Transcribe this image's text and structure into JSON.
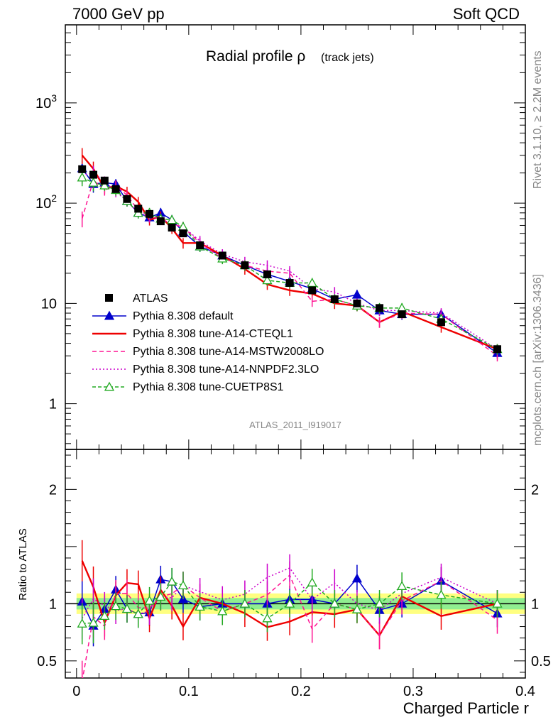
{
  "header": {
    "energy_label": "7000 GeV pp",
    "category_label": "Soft QCD"
  },
  "side": {
    "rivet_label": "Rivet 3.1.10, ≥ 2.2M events",
    "mcplots_label": "mcplots.cern.ch [arXiv:1306.3436]"
  },
  "chart_data": {
    "type": "line",
    "title_main": "Radial profile ρ",
    "title_sub": "(track jets)",
    "analysis_label": "ATLAS_2011_I919017",
    "xlabel": "Charged Particle r",
    "ylabel_ratio": "Ratio to ATLAS",
    "xlim": [
      -0.01,
      0.4
    ],
    "ylim_main": [
      0.35,
      6000
    ],
    "ylog": true,
    "ylim_ratio": [
      0.35,
      2.35
    ],
    "x_ticks": [
      "0",
      "0.1",
      "0.2",
      "0.3",
      "0.4"
    ],
    "y_ticks_main": [
      "1",
      "10",
      "10^2",
      "10^3"
    ],
    "y_ticks_ratio": [
      "0.5",
      "1",
      "2"
    ],
    "legend_position": "middle-left",
    "x": [
      0.005,
      0.015,
      0.025,
      0.035,
      0.045,
      0.055,
      0.065,
      0.075,
      0.085,
      0.095,
      0.11,
      0.13,
      0.15,
      0.17,
      0.19,
      0.21,
      0.23,
      0.25,
      0.27,
      0.29,
      0.325,
      0.375
    ],
    "reference": {
      "name": "ATLAS",
      "color": "#000000",
      "values": [
        218,
        192,
        168,
        138,
        110,
        88,
        78,
        66,
        57,
        50,
        38,
        30,
        24,
        19.5,
        16,
        13.5,
        11,
        10,
        9,
        7.8,
        6.5,
        3.5
      ],
      "band_stat": 0.05,
      "band_total": 0.09
    },
    "series": [
      {
        "name": "Pythia 8.308 default",
        "color": "#0000cc",
        "dash": "",
        "marker": "triangle",
        "values": [
          222,
          155,
          160,
          155,
          105,
          80,
          72,
          80,
          68,
          52,
          37,
          30,
          24,
          19.5,
          16.6,
          14,
          11,
          12.2,
          8.5,
          7.8,
          7.8,
          3.2
        ]
      },
      {
        "name": "Pythia 8.308 tune-A14-CTEQL1",
        "color": "#ee0000",
        "dash": "",
        "marker": "none",
        "values": [
          300,
          220,
          140,
          148,
          130,
          103,
          68,
          74,
          56,
          40,
          40,
          30,
          22,
          15.5,
          13.5,
          12.5,
          10,
          9.5,
          6.5,
          8.3,
          5.8,
          3.5
        ]
      },
      {
        "name": "Pythia 8.308 tune-A14-MSTW2008LO",
        "color": "#ff1493",
        "dash": "6,4",
        "marker": "none",
        "values": [
          70,
          170,
          135,
          150,
          120,
          85,
          75,
          70,
          62,
          58,
          40,
          28,
          24,
          21,
          20,
          10.5,
          11,
          9.5,
          6.5,
          8,
          7.8,
          3
        ]
      },
      {
        "name": "Pythia 8.308 tune-A14-NNPDF2.3LO",
        "color": "#cc00cc",
        "dash": "2,3",
        "marker": "none",
        "values": [
          190,
          200,
          165,
          130,
          105,
          80,
          73,
          70,
          60,
          58,
          42,
          31,
          26,
          24,
          21,
          14,
          13,
          10,
          8.5,
          8.5,
          8,
          3.5
        ]
      },
      {
        "name": "Pythia 8.308 tune-CUETP8S1",
        "color": "#22aa22",
        "dash": "5,3",
        "marker": "triangle-open",
        "values": [
          180,
          160,
          150,
          135,
          105,
          80,
          80,
          70,
          68,
          58,
          37,
          28,
          24,
          17,
          16,
          16,
          11,
          9.5,
          9,
          9,
          7,
          3.5
        ]
      }
    ]
  }
}
